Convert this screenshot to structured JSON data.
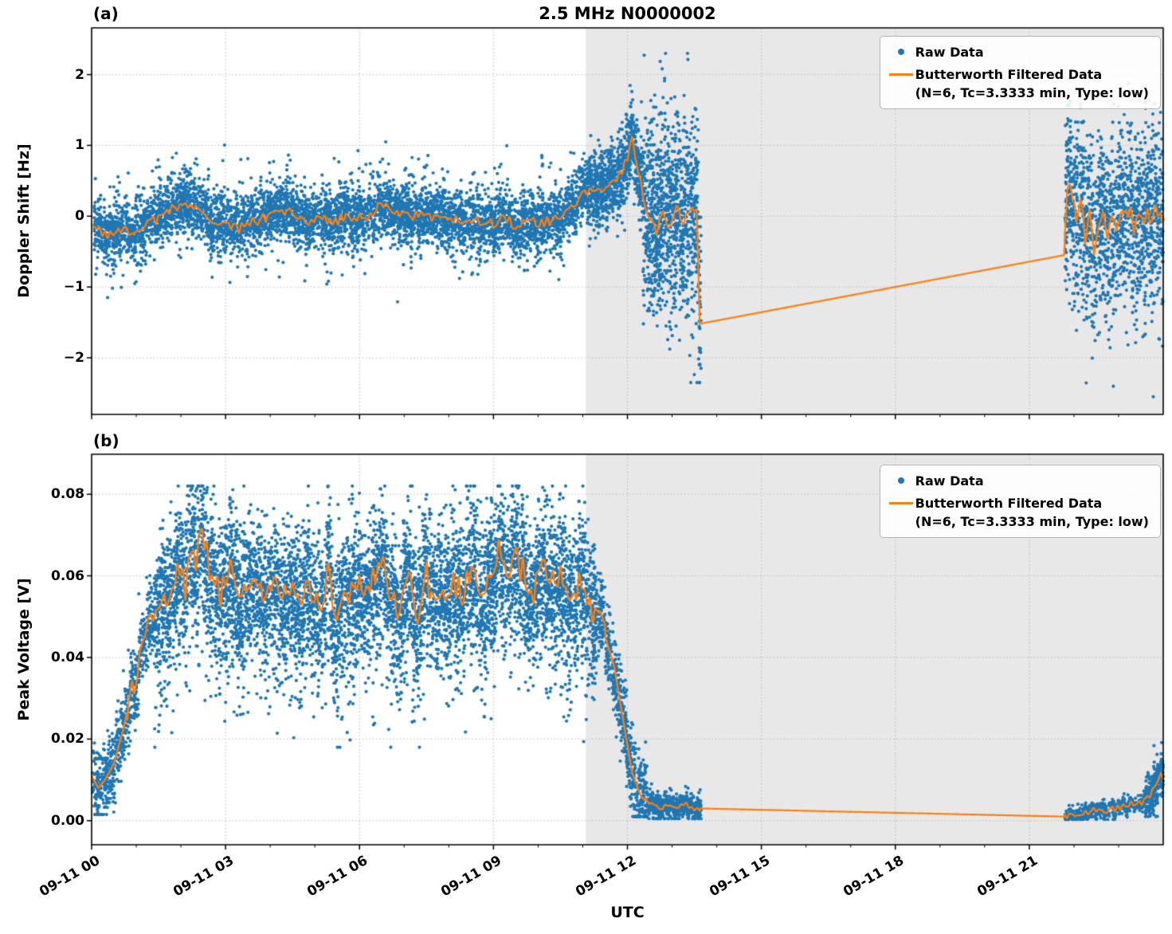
{
  "title": "2.5 MHz N0000002",
  "xlabel": "UTC",
  "legend": {
    "raw": "Raw Data",
    "filtered_line1": "Butterworth Filtered Data",
    "filtered_line2": "(N=6, Tc=3.3333 min, Type: low)"
  },
  "colors": {
    "raw": "#1f77b4",
    "filtered": "#ff7f0e",
    "shaded": "#e8e8e8",
    "grid": "#b9b9b9",
    "spine": "#000000"
  },
  "xticks": [
    {
      "h": 0,
      "label": "09-11 00"
    },
    {
      "h": 3,
      "label": "09-11 03"
    },
    {
      "h": 6,
      "label": "09-11 06"
    },
    {
      "h": 9,
      "label": "09-11 09"
    },
    {
      "h": 12,
      "label": "09-11 12"
    },
    {
      "h": 15,
      "label": "09-11 15"
    },
    {
      "h": 18,
      "label": "09-11 18"
    },
    {
      "h": 21,
      "label": "09-11 21"
    }
  ],
  "chart_data": [
    {
      "type": "scatter",
      "panel": "(a)",
      "ylabel": "Doppler Shift [Hz]",
      "xlabel": "UTC",
      "xlim_hours": [
        0,
        24
      ],
      "ylim": [
        -2.8,
        2.66
      ],
      "grid": true,
      "legend_position": "upper right",
      "shaded_region_hours": [
        11.07,
        24
      ],
      "yticks": [
        {
          "v": 2,
          "label": "2"
        },
        {
          "v": 1,
          "label": "1"
        },
        {
          "v": 0,
          "label": "0"
        },
        {
          "v": -1,
          "label": "−1"
        },
        {
          "v": -2,
          "label": "−2"
        }
      ],
      "seed": 42,
      "series": [
        {
          "name": "Raw Data",
          "type": "scatter",
          "color": "#1f77b4",
          "segments": [
            {
              "t0": 0.05,
              "t1": 11.1,
              "n": 6000,
              "spread": 0.19,
              "out_p": 0.22,
              "out_s": 0.3,
              "clip": [
                -1.35,
                1.05
              ]
            },
            {
              "t0": 11.1,
              "t1": 12.35,
              "n": 900,
              "spread": 0.24,
              "out_p": 0.25,
              "out_s": 0.3,
              "clip": [
                -0.6,
                1.85
              ]
            },
            {
              "t0": 12.35,
              "t1": 13.65,
              "n": 1100,
              "spread": 0.65,
              "out_p": 0.3,
              "out_s": 0.5,
              "clip": [
                -2.35,
                2.3
              ]
            },
            {
              "t0": 21.8,
              "t1": 24,
              "n": 1500,
              "spread": 0.6,
              "out_p": 0.3,
              "out_s": 0.55,
              "clip": [
                -2.55,
                2.3
              ]
            }
          ]
        },
        {
          "name": "Butterworth Filtered Data (N=6, Tc=3.3333 min, Type: low)",
          "type": "line",
          "color": "#ff7f0e",
          "gap": [
            13.62,
            21.78
          ],
          "wiggle": [
            [
              0,
              13.55,
              0.07
            ],
            [
              21.8,
              24,
              0.12
            ]
          ],
          "anchors": [
            [
              0,
              -0.1
            ],
            [
              0.3,
              -0.28
            ],
            [
              0.6,
              -0.18
            ],
            [
              0.9,
              -0.22
            ],
            [
              1.2,
              -0.12
            ],
            [
              1.5,
              -0.02
            ],
            [
              1.8,
              0.1
            ],
            [
              2.1,
              0.22
            ],
            [
              2.4,
              0.05
            ],
            [
              2.7,
              -0.05
            ],
            [
              3,
              -0.12
            ],
            [
              3.3,
              -0.18
            ],
            [
              3.6,
              -0.08
            ],
            [
              3.9,
              -0.02
            ],
            [
              4.2,
              0.1
            ],
            [
              4.5,
              0.03
            ],
            [
              4.8,
              -0.08
            ],
            [
              5.1,
              -0.02
            ],
            [
              5.4,
              -0.1
            ],
            [
              5.7,
              0.02
            ],
            [
              6,
              -0.04
            ],
            [
              6.3,
              0.05
            ],
            [
              6.55,
              0.2
            ],
            [
              6.8,
              0.02
            ],
            [
              7.1,
              -0.02
            ],
            [
              7.4,
              0.08
            ],
            [
              7.7,
              -0.06
            ],
            [
              8,
              0
            ],
            [
              8.3,
              -0.1
            ],
            [
              8.6,
              -0.04
            ],
            [
              8.9,
              -0.12
            ],
            [
              9.2,
              -0.04
            ],
            [
              9.5,
              -0.12
            ],
            [
              9.8,
              -0.06
            ],
            [
              10.1,
              -0.1
            ],
            [
              10.4,
              -0.02
            ],
            [
              10.7,
              0.08
            ],
            [
              11,
              0.3
            ],
            [
              11.2,
              0.42
            ],
            [
              11.4,
              0.38
            ],
            [
              11.6,
              0.5
            ],
            [
              11.8,
              0.55
            ],
            [
              12,
              0.8
            ],
            [
              12.1,
              1.08
            ],
            [
              12.2,
              0.82
            ],
            [
              12.35,
              0.3
            ],
            [
              12.5,
              -0.05
            ],
            [
              12.65,
              -0.25
            ],
            [
              12.8,
              0.05
            ],
            [
              12.95,
              -0.15
            ],
            [
              13.1,
              0.1
            ],
            [
              13.25,
              -0.05
            ],
            [
              13.4,
              0.1
            ],
            [
              13.55,
              0.12
            ],
            [
              13.62,
              -1.52
            ],
            [
              21.78,
              -0.55
            ],
            [
              21.85,
              0.3
            ],
            [
              21.95,
              0.42
            ],
            [
              22.05,
              -0.15
            ],
            [
              22.15,
              0.25
            ],
            [
              22.25,
              -0.3
            ],
            [
              22.35,
              0.1
            ],
            [
              22.45,
              -0.5
            ],
            [
              22.55,
              -0.1
            ],
            [
              22.65,
              0.15
            ],
            [
              22.75,
              -0.25
            ],
            [
              22.85,
              0.05
            ],
            [
              22.95,
              -0.2
            ],
            [
              23.05,
              0.15
            ],
            [
              23.15,
              -0.05
            ],
            [
              23.25,
              0.1
            ],
            [
              23.35,
              -0.15
            ],
            [
              23.45,
              0
            ],
            [
              23.55,
              -0.1
            ],
            [
              23.65,
              0.05
            ],
            [
              23.75,
              -0.05
            ],
            [
              23.85,
              0.1
            ],
            [
              24,
              0
            ]
          ]
        }
      ]
    },
    {
      "type": "scatter",
      "panel": "(b)",
      "ylabel": "Peak Voltage [V]",
      "xlabel": "UTC",
      "xlim_hours": [
        0,
        24
      ],
      "ylim": [
        -0.0059,
        0.0898
      ],
      "grid": true,
      "legend_position": "upper right",
      "shaded_region_hours": [
        11.07,
        24
      ],
      "yticks": [
        {
          "v": 0.08,
          "label": "0.08"
        },
        {
          "v": 0.06,
          "label": "0.06"
        },
        {
          "v": 0.04,
          "label": "0.04"
        },
        {
          "v": 0.02,
          "label": "0.02"
        },
        {
          "v": 0,
          "label": "0.00"
        }
      ],
      "seed": 1337,
      "series": [
        {
          "name": "Raw Data",
          "type": "scatter",
          "color": "#1f77b4",
          "segments": [
            {
              "t0": 0.02,
              "t1": 1.4,
              "n": 650,
              "spread": 0.004,
              "out_p": 0.2,
              "out_s": 0.004,
              "clip": [
                0.0015,
                0.075
              ]
            },
            {
              "t0": 1.4,
              "t1": 11.3,
              "n": 7000,
              "spread": 0.0085,
              "out_p": 0.28,
              "out_s": 0.009,
              "skew": "down",
              "clip": [
                0.018,
                0.082
              ]
            },
            {
              "t0": 11.3,
              "t1": 12.45,
              "n": 550,
              "spread": 0.005,
              "out_p": 0.2,
              "out_s": 0.004,
              "clip": [
                0.001,
                0.075
              ]
            },
            {
              "t0": 12.45,
              "t1": 13.65,
              "n": 650,
              "spread": 0.0013,
              "out_p": 0.15,
              "out_s": 0.002,
              "clip": [
                0.0005,
                0.009
              ]
            },
            {
              "t0": 21.8,
              "t1": 23.6,
              "n": 500,
              "spread": 0.001,
              "out_p": 0.1,
              "out_s": 0.001,
              "clip": [
                0.0003,
                0.008
              ]
            },
            {
              "t0": 23.6,
              "t1": 24,
              "n": 320,
              "spread": 0.0025,
              "out_p": 0.2,
              "out_s": 0.002,
              "clip": [
                0.001,
                0.02
              ]
            }
          ]
        },
        {
          "name": "Butterworth Filtered Data (N=6, Tc=3.3333 min, Type: low)",
          "type": "line",
          "color": "#ff7f0e",
          "gap": [
            13.62,
            21.78
          ],
          "wiggle": [
            [
              0.8,
              11.5,
              0.004
            ],
            [
              12.4,
              13.62,
              0.0006
            ],
            [
              21.8,
              24,
              0.0008
            ]
          ],
          "anchors": [
            [
              0,
              0.011
            ],
            [
              0.15,
              0.008
            ],
            [
              0.3,
              0.01
            ],
            [
              0.5,
              0.014
            ],
            [
              0.7,
              0.022
            ],
            [
              0.9,
              0.032
            ],
            [
              1.1,
              0.042
            ],
            [
              1.3,
              0.048
            ],
            [
              1.5,
              0.052
            ],
            [
              1.7,
              0.057
            ],
            [
              1.9,
              0.06
            ],
            [
              2.1,
              0.058
            ],
            [
              2.3,
              0.064
            ],
            [
              2.5,
              0.07
            ],
            [
              2.7,
              0.06
            ],
            [
              2.9,
              0.055
            ],
            [
              3.1,
              0.062
            ],
            [
              3.3,
              0.057
            ],
            [
              3.5,
              0.06
            ],
            [
              3.7,
              0.055
            ],
            [
              3.9,
              0.058
            ],
            [
              4.1,
              0.062
            ],
            [
              4.3,
              0.056
            ],
            [
              4.5,
              0.06
            ],
            [
              4.7,
              0.052
            ],
            [
              4.9,
              0.058
            ],
            [
              5.1,
              0.05
            ],
            [
              5.3,
              0.06
            ],
            [
              5.5,
              0.046
            ],
            [
              5.7,
              0.055
            ],
            [
              5.9,
              0.06
            ],
            [
              6.1,
              0.052
            ],
            [
              6.3,
              0.058
            ],
            [
              6.5,
              0.065
            ],
            [
              6.7,
              0.055
            ],
            [
              6.9,
              0.05
            ],
            [
              7.1,
              0.058
            ],
            [
              7.3,
              0.052
            ],
            [
              7.5,
              0.06
            ],
            [
              7.7,
              0.054
            ],
            [
              7.9,
              0.057
            ],
            [
              8.1,
              0.06
            ],
            [
              8.3,
              0.055
            ],
            [
              8.5,
              0.062
            ],
            [
              8.7,
              0.056
            ],
            [
              8.9,
              0.062
            ],
            [
              9.1,
              0.066
            ],
            [
              9.3,
              0.057
            ],
            [
              9.5,
              0.065
            ],
            [
              9.7,
              0.06
            ],
            [
              9.9,
              0.056
            ],
            [
              10.1,
              0.062
            ],
            [
              10.3,
              0.058
            ],
            [
              10.5,
              0.06
            ],
            [
              10.7,
              0.055
            ],
            [
              10.9,
              0.058
            ],
            [
              11.1,
              0.056
            ],
            [
              11.3,
              0.05
            ],
            [
              11.5,
              0.045
            ],
            [
              11.7,
              0.038
            ],
            [
              11.9,
              0.025
            ],
            [
              12.1,
              0.012
            ],
            [
              12.3,
              0.006
            ],
            [
              12.5,
              0.004
            ],
            [
              12.7,
              0.003
            ],
            [
              12.9,
              0.0035
            ],
            [
              13.1,
              0.003
            ],
            [
              13.3,
              0.004
            ],
            [
              13.5,
              0.003
            ],
            [
              13.62,
              0.003
            ],
            [
              21.78,
              0.001
            ],
            [
              22,
              0.0015
            ],
            [
              22.2,
              0.002
            ],
            [
              22.4,
              0.0025
            ],
            [
              22.6,
              0.002
            ],
            [
              22.8,
              0.003
            ],
            [
              23,
              0.003
            ],
            [
              23.2,
              0.004
            ],
            [
              23.4,
              0.004
            ],
            [
              23.6,
              0.005
            ],
            [
              23.75,
              0.007
            ],
            [
              23.85,
              0.009
            ],
            [
              23.95,
              0.012
            ],
            [
              24,
              0.01
            ]
          ]
        }
      ]
    }
  ]
}
